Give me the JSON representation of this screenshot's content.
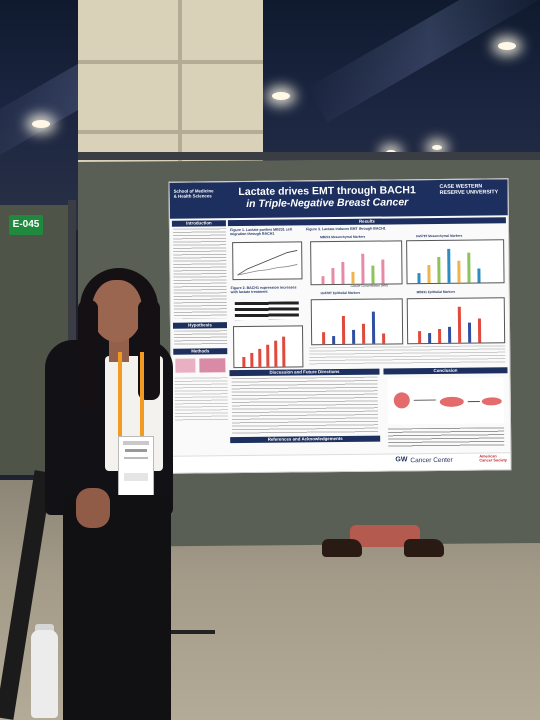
{
  "booth_sign": "E-045",
  "poster": {
    "school": "School of Medicine & Health Sciences",
    "title_line1": "Lactate drives EMT through BACH1",
    "title_line2": "in Triple-Negative Breast Cancer",
    "university": "CASE WESTERN RESERVE UNIVERSITY",
    "sections": {
      "introduction": "Introduction",
      "hypothesis": "Hypothesis",
      "methods": "Methods",
      "results": "Results",
      "discussion": "Discussion and Future Directions",
      "conclusion": "Conclusion",
      "references": "References and Acknowledgements"
    },
    "figure_titles": {
      "fig1": "Figure 1. Lactate pushes MB231 cell migration through BACH1",
      "fig2": "Figure 2. BACH1 expression increases with lactate treatment",
      "fig3": "Figure 3. Lactate induces EMT through BACH1",
      "panel_a": "MB231 Mesenchymal Markers",
      "panel_b": "Hs578T Mesenchymal Markers",
      "panel_c": "Hs578T Epithelial Markers",
      "panel_d": "MB231 Epithelial Markers"
    },
    "axis_label": "Lactate Concentration (mM)",
    "footer": {
      "gw": "GW",
      "cancer_center": "Cancer Center",
      "acs": "American Cancer Society"
    }
  },
  "colors": {
    "poster_navy": "#1c2f5e",
    "sign_green": "#1f8a3e",
    "lanyard_orange": "#f39a23"
  }
}
